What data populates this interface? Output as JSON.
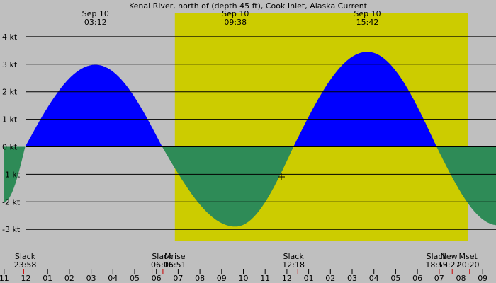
{
  "chart_data": {
    "type": "area",
    "title": "Kenai River, north of (depth 45 ft), Cook Inlet, Alaska Current",
    "xlabel": "",
    "ylabel": "",
    "x_range_hours": [
      -1.1,
      21.7
    ],
    "ylim": [
      -4,
      4
    ],
    "y_ticks": [
      {
        "v": 4,
        "label": "4 kt"
      },
      {
        "v": 3,
        "label": "3 kt"
      },
      {
        "v": 2,
        "label": "2 kt"
      },
      {
        "v": 1,
        "label": "1 kt"
      },
      {
        "v": 0,
        "label": "0 kt"
      },
      {
        "v": -1,
        "label": "-1 kt"
      },
      {
        "v": -2,
        "label": "-2 kt"
      },
      {
        "v": -3,
        "label": "-3 kt"
      }
    ],
    "x_ticks": [
      "11",
      "12",
      "01",
      "02",
      "03",
      "04",
      "05",
      "06",
      "07",
      "08",
      "09",
      "10",
      "11",
      "12",
      "01",
      "02",
      "03",
      "04",
      "05",
      "06",
      "07",
      "08",
      "09"
    ],
    "x_tick_start_hour": -1,
    "daylight": {
      "start_hour": 6.85,
      "end_hour": 20.33
    },
    "series": [
      {
        "points": [
          {
            "t": -1.0,
            "v": -2.0
          },
          {
            "t": -0.033,
            "v": 0.0
          },
          {
            "t": 3.2,
            "v": 2.98
          },
          {
            "t": 6.267,
            "v": 0.0
          },
          {
            "t": 9.633,
            "v": -2.9
          },
          {
            "t": 12.3,
            "v": 0.0
          },
          {
            "t": 15.7,
            "v": 3.45
          },
          {
            "t": 18.883,
            "v": 0.0
          },
          {
            "t": 21.7,
            "v": -2.85
          }
        ]
      }
    ],
    "peak_labels": [
      {
        "t": 3.2,
        "date": "Sep 10",
        "time": "03:12"
      },
      {
        "t": 9.633,
        "date": "Sep 10",
        "time": "09:38"
      },
      {
        "t": 15.7,
        "date": "Sep 10",
        "time": "15:42"
      }
    ],
    "event_labels": [
      {
        "t": -0.033,
        "name": "Slack",
        "time": "23:58",
        "anchor": "middle"
      },
      {
        "t": 6.267,
        "name": "Slack",
        "time": "06:16",
        "anchor": "middle"
      },
      {
        "t": 6.85,
        "name": "Mrise",
        "time": "06:51",
        "anchor": "middle"
      },
      {
        "t": 12.3,
        "name": "Slack",
        "time": "12:18",
        "anchor": "middle"
      },
      {
        "t": 18.883,
        "name": "Slack",
        "time": "18:53",
        "anchor": "middle"
      },
      {
        "t": 19.45,
        "name": "New",
        "time": "19:27",
        "anchor": "middle"
      },
      {
        "t": 20.33,
        "name": "Mset",
        "time": "20:20",
        "anchor": "middle"
      }
    ],
    "red_marks_hours": [
      -0.1,
      5.8,
      6.3,
      12.5,
      19.0,
      19.6,
      20.4
    ],
    "colors": {
      "flood": "#0000ff",
      "ebb": "#2e8b57",
      "night": "#bfbfbf",
      "day": "#cccc00",
      "grid": "#000000",
      "marker": "#cc0000"
    }
  }
}
